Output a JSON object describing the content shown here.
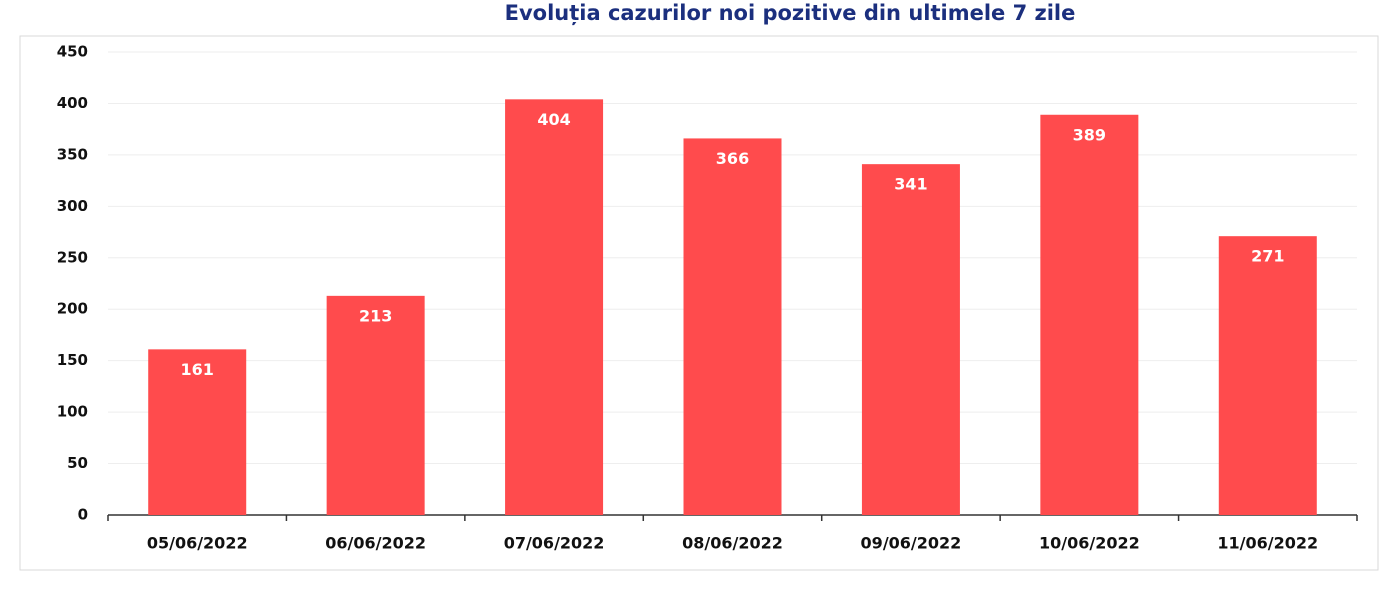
{
  "chart_data": {
    "type": "bar",
    "title": "Evoluția cazurilor noi pozitive din ultimele 7 zile",
    "categories": [
      "05/06/2022",
      "06/06/2022",
      "07/06/2022",
      "08/06/2022",
      "09/06/2022",
      "10/06/2022",
      "11/06/2022"
    ],
    "values": [
      161,
      213,
      404,
      366,
      341,
      389,
      271
    ],
    "color": "#ff4b4d",
    "ylim": [
      0,
      450
    ],
    "yticks": [
      0,
      50,
      100,
      150,
      200,
      250,
      300,
      350,
      400,
      450
    ],
    "grid": true
  }
}
